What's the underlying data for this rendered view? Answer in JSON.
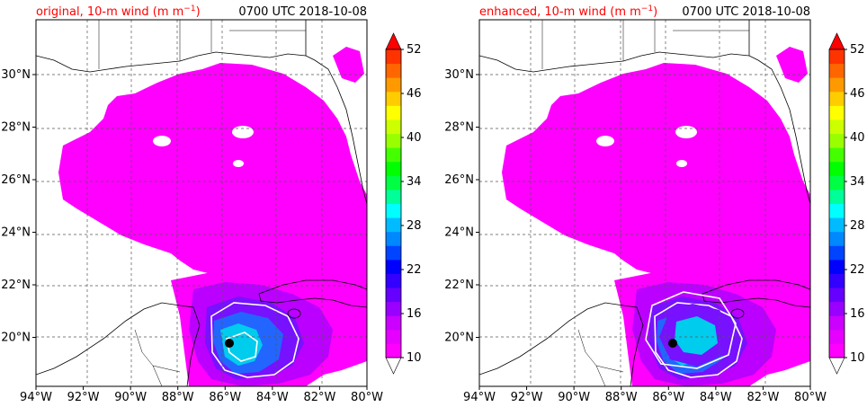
{
  "panels": [
    {
      "id": "original",
      "left_title": "original, 10-m wind (m m",
      "left_title_sup": "−1",
      "left_title_end": ")",
      "right_title": "0700 UTC 2018-10-08"
    },
    {
      "id": "enhanced",
      "left_title": "enhanced, 10-m wind (m m",
      "left_title_sup": "−1",
      "left_title_end": ")",
      "right_title": "0700 UTC 2018-10-08"
    }
  ],
  "x_ticks": [
    "94°W",
    "92°W",
    "90°W",
    "88°W",
    "86°W",
    "84°W",
    "82°W",
    "80°W"
  ],
  "y_ticks": [
    "30°N",
    "28°N",
    "26°N",
    "24°N",
    "22°N",
    "20°N"
  ],
  "colorbar": {
    "ticks": [
      "10",
      "16",
      "22",
      "28",
      "34",
      "40",
      "46",
      "52"
    ],
    "colors": [
      "#ff00ff",
      "#e600ff",
      "#cc00ff",
      "#9900ff",
      "#6600ff",
      "#3300ff",
      "#0000ff",
      "#0044ff",
      "#0088ff",
      "#00bbff",
      "#00ffff",
      "#00ff99",
      "#00ff44",
      "#00ff00",
      "#44ff00",
      "#99ff00",
      "#ccff00",
      "#ffff00",
      "#ffcc00",
      "#ff9900",
      "#ff6600",
      "#ff3300"
    ],
    "over_color": "#ff0000",
    "under_color": "#ffffff"
  },
  "colors": {
    "land": "#ffffff",
    "wind_low": "#ff00ff",
    "wind_mid": "#aa00ff",
    "wind_high": "#2255ff",
    "wind_core": "#00ddee"
  }
}
